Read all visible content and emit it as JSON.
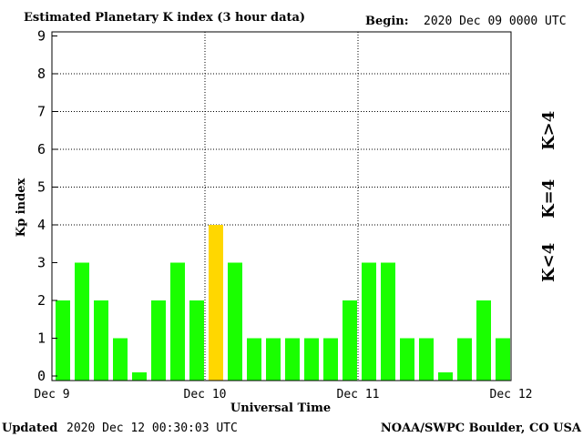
{
  "chart_data": {
    "type": "bar",
    "title": "Estimated Planetary K index (3 hour data)",
    "begin_label": "Begin:",
    "begin_value": "2020 Dec 09 0000 UTC",
    "xlabel": "Universal Time",
    "ylabel": "Kp index",
    "ylim": [
      0,
      9
    ],
    "yticks": [
      "0",
      "1",
      "2",
      "3",
      "4",
      "5",
      "6",
      "7",
      "8",
      "9"
    ],
    "xticks": [
      "Dec 9",
      "Dec 10",
      "Dec 11",
      "Dec 12"
    ],
    "values": [
      2,
      3,
      2,
      1,
      0,
      2,
      3,
      2,
      4,
      3,
      1,
      1,
      1,
      1,
      1,
      2,
      3,
      3,
      1,
      1,
      0,
      1,
      2,
      1
    ],
    "colors": {
      "low": "#1aff00",
      "equal": "#ffd700",
      "high": "#ff2a00"
    },
    "legend": {
      "low": "K<4",
      "equal": "K=4",
      "high": "K>4"
    },
    "grid": "dotted at Dec 10, Dec 11 and Kp 4-8"
  },
  "footer": {
    "updated_label": "Updated",
    "updated_value": "2020 Dec 12 00:30:03 UTC",
    "source": "NOAA/SWPC Boulder, CO USA"
  }
}
